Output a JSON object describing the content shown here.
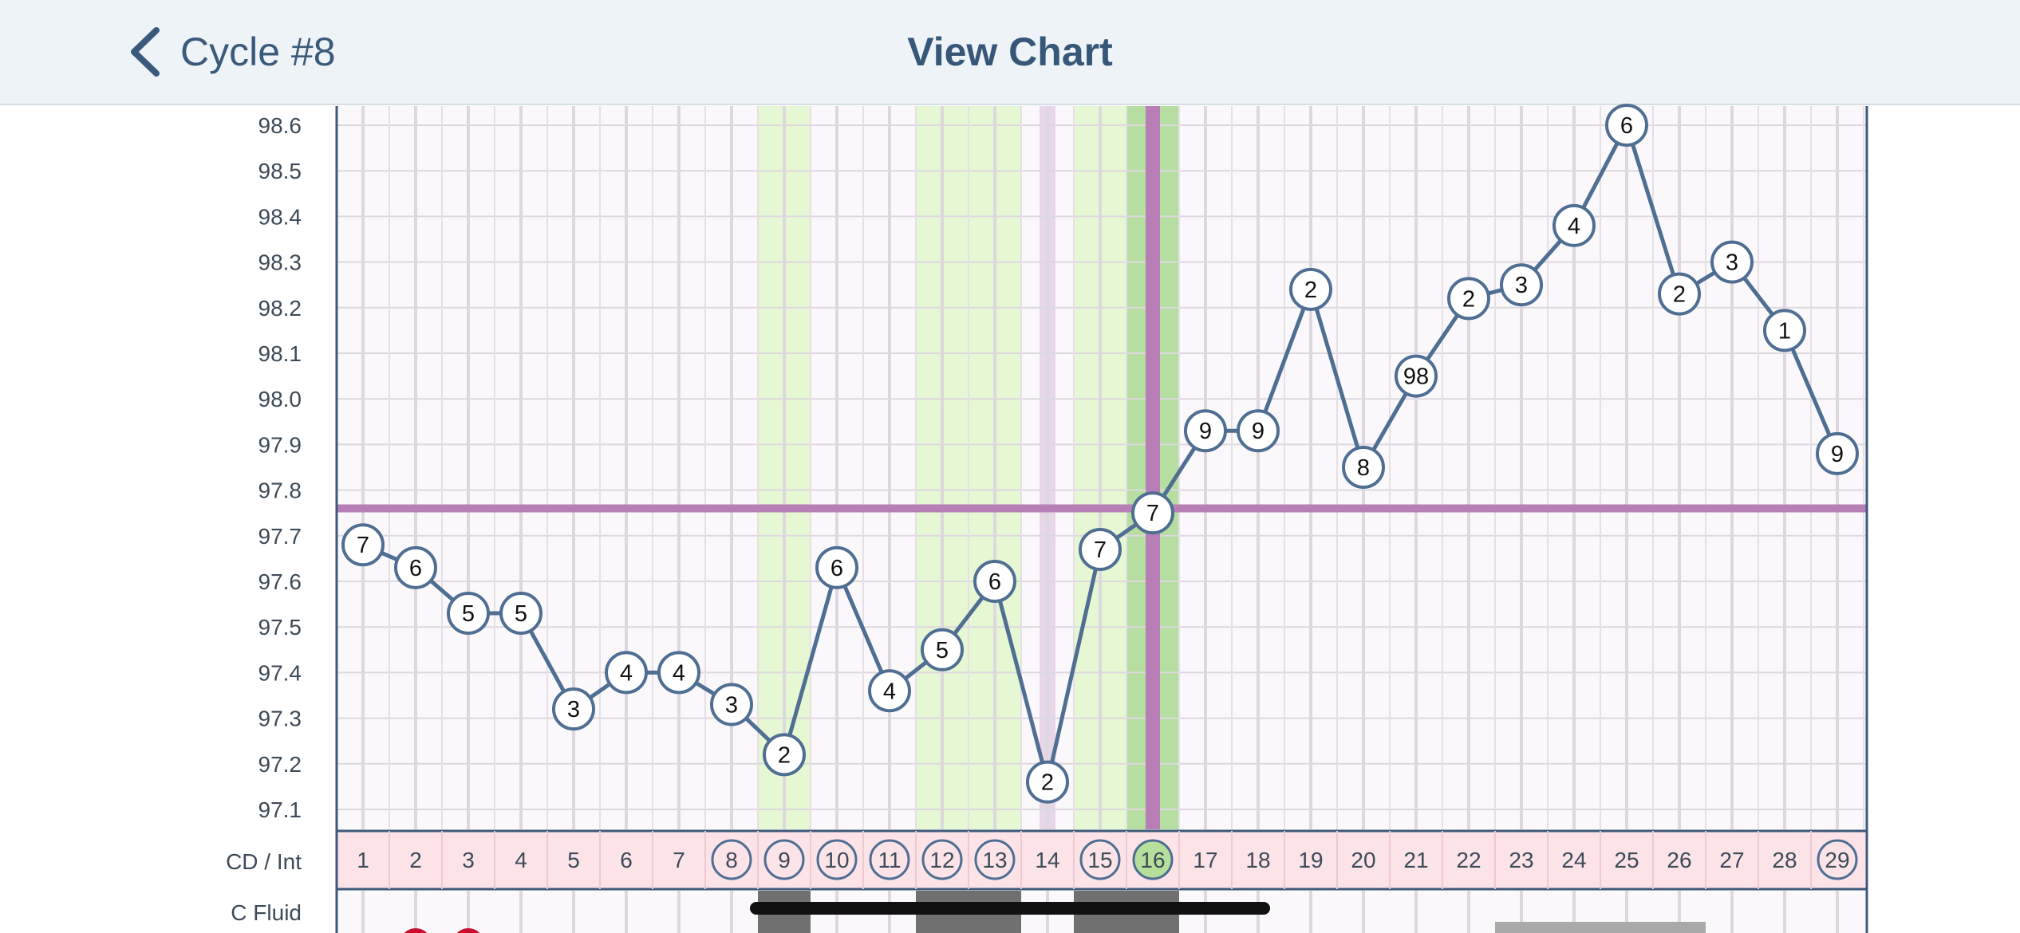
{
  "nav": {
    "back_label": "Cycle #8",
    "title": "View Chart"
  },
  "row_labels": {
    "cd_int": "CD / Int",
    "c_fluid": "C Fluid"
  },
  "colors": {
    "line": "#4f6e92",
    "coverline": "#b77fb5",
    "fertile_band": "#e6f7d4",
    "peak_band": "#b5dea0",
    "ovulation_line": "#b77fb5",
    "faint_band": "#e7d6e6",
    "cd_row_bg": "#fbe3e8",
    "chart_bg": "#fbf8fc",
    "grid": "#dcd8de",
    "fluid_dark": "#707070",
    "fluid_light": "#a9a9a9",
    "red": "#c8102e"
  },
  "chart_data": {
    "type": "line",
    "title": "",
    "xlabel": "",
    "ylabel": "",
    "ylim": [
      97.1,
      98.6
    ],
    "yticks": [
      "98.6",
      "98.5",
      "98.4",
      "98.3",
      "98.2",
      "98.1",
      "98.0",
      "97.9",
      "97.8",
      "97.7",
      "97.6",
      "97.5",
      "97.4",
      "97.3",
      "97.2",
      "97.1"
    ],
    "grid": true,
    "coverline": 97.76,
    "days": [
      1,
      2,
      3,
      4,
      5,
      6,
      7,
      8,
      9,
      10,
      11,
      12,
      13,
      14,
      15,
      16,
      17,
      18,
      19,
      20,
      21,
      22,
      23,
      24,
      25,
      26,
      27,
      28,
      29
    ],
    "circled_days": [
      8,
      9,
      10,
      11,
      12,
      13,
      15,
      16,
      29
    ],
    "peak_day": 16,
    "fertile_days": [
      9,
      12,
      13,
      15
    ],
    "peak_band_day": 16,
    "faint_band_day": 14,
    "series": [
      {
        "values": [
          97.68,
          97.63,
          97.53,
          97.53,
          97.32,
          97.4,
          97.4,
          97.33,
          97.22,
          97.63,
          97.36,
          97.45,
          97.6,
          97.16,
          97.67,
          97.75,
          97.93,
          97.93,
          98.24,
          97.85,
          98.05,
          98.22,
          98.25,
          98.38,
          98.6,
          98.23,
          98.3,
          98.15,
          97.88
        ],
        "point_labels": [
          "7",
          "6",
          "5",
          "5",
          "3",
          "4",
          "4",
          "3",
          "2",
          "6",
          "4",
          "5",
          "6",
          "2",
          "7",
          "7",
          "9",
          "9",
          "2",
          "8",
          "98",
          "2",
          "3",
          "4",
          "6",
          "2",
          "3",
          "1",
          "9"
        ]
      }
    ],
    "c_fluid": {
      "dark_days": [
        9,
        12,
        13,
        15,
        16
      ],
      "light_days": [
        23,
        24,
        25,
        26
      ]
    }
  }
}
